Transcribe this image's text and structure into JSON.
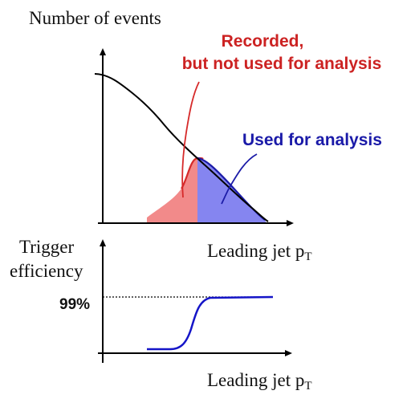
{
  "colors": {
    "axis": "#000000",
    "recorded": "#d62a2a",
    "recorded_fill": "#f28a8a",
    "used": "#1c1ca8",
    "used_fill": "#8585f0",
    "efficiency_curve": "#1515c8"
  },
  "top_panel": {
    "y_label": "Number of events",
    "x_label": "Leading jet p",
    "x_label_sub": "T",
    "annotation_recorded_line1": "Recorded,",
    "annotation_recorded_line2": "but not used for analysis",
    "annotation_used": "Used for analysis"
  },
  "bottom_panel": {
    "y_label_line1": "Trigger",
    "y_label_line2": "efficiency",
    "level_label": "99%",
    "x_label": "Leading jet p",
    "x_label_sub": "T"
  }
}
